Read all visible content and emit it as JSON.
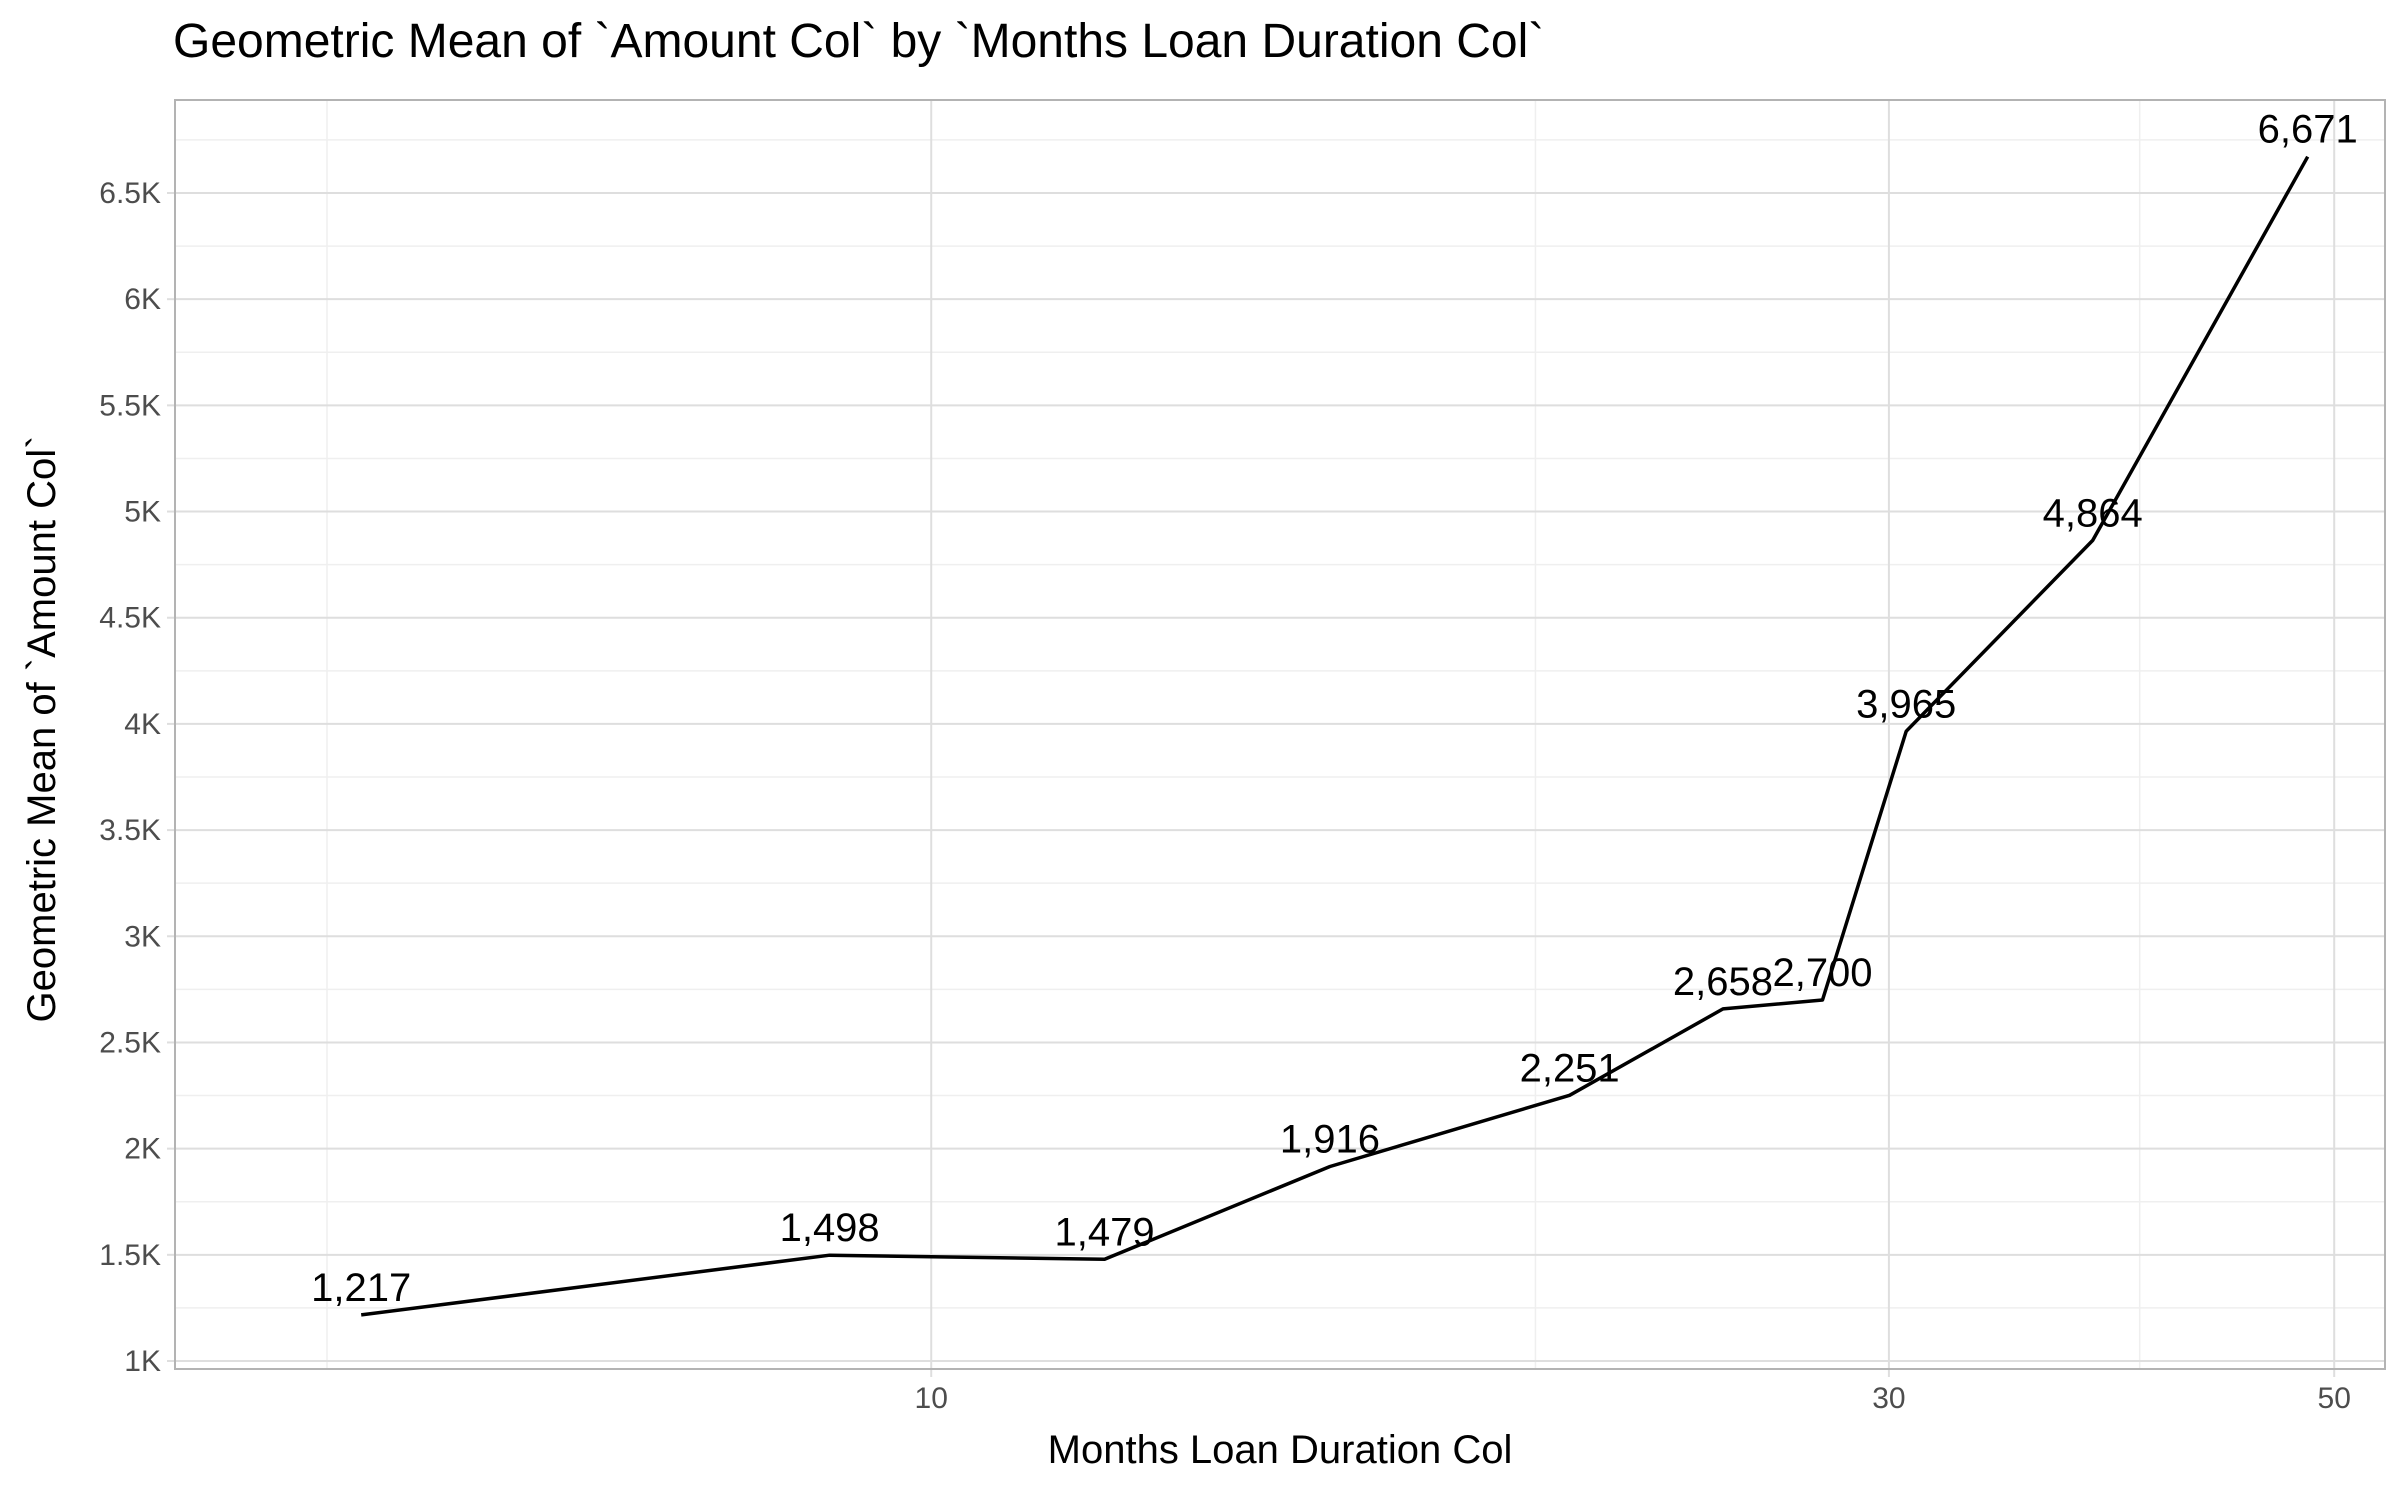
{
  "chart_data": {
    "type": "line",
    "title": "Geometric Mean of `Amount Col` by `Months Loan Duration Col`",
    "xlabel": "Months Loan Duration Col",
    "ylabel": "Geometric Mean of `Amount Col`",
    "x_scale": "log10",
    "xlim": [
      4.2,
      53
    ],
    "ylim": [
      1000,
      7000
    ],
    "x_ticks": [
      10,
      30,
      50
    ],
    "x_tick_labels": [
      "10",
      "30",
      "50"
    ],
    "x_minor_ticks": [
      5,
      20,
      40
    ],
    "y_ticks": [
      1000,
      1500,
      2000,
      2500,
      3000,
      3500,
      4000,
      4500,
      5000,
      5500,
      6000,
      6500
    ],
    "y_tick_labels": [
      "1K",
      "1.5K",
      "2K",
      "2.5K",
      "3K",
      "3.5K",
      "4K",
      "4.5K",
      "5K",
      "5.5K",
      "6K",
      "6.5K"
    ],
    "grid": true,
    "series": [
      {
        "x": [
          5.2,
          8.9,
          12.2,
          15.8,
          20.8,
          24.8,
          27.8,
          30.6,
          37.9,
          48.5
        ],
        "y": [
          1217,
          1498,
          1479,
          1916,
          2251,
          2658,
          2700,
          3965,
          4864,
          6671
        ],
        "labels": [
          "1,217",
          "1,498",
          "1,479",
          "1,916",
          "2,251",
          "2,658",
          "2,700",
          "3,965",
          "4,864",
          "6,671"
        ],
        "color": "#000000"
      }
    ],
    "colors": {
      "panel_border": "#b3b3b3",
      "grid_major": "#dedede",
      "grid_minor": "#efefef",
      "tick_text": "#4d4d4d",
      "line": "#000000"
    }
  }
}
